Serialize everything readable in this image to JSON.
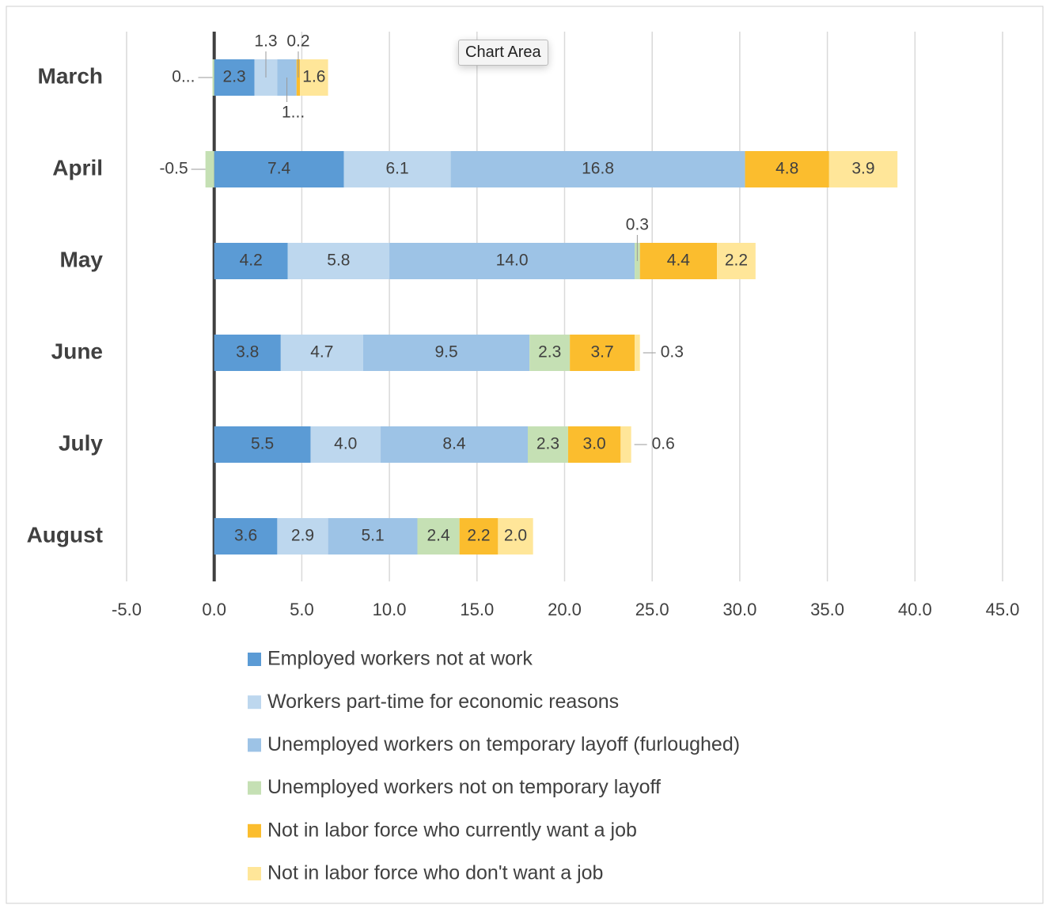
{
  "chart_data": {
    "type": "stacked-bar-horizontal",
    "tooltip": "Chart Area",
    "categories": [
      "March",
      "April",
      "May",
      "June",
      "July",
      "August"
    ],
    "series": [
      {
        "name": "Employed workers not at work",
        "color": "#5b9bd5",
        "values": [
          2.3,
          7.4,
          4.2,
          3.8,
          5.5,
          3.6
        ],
        "value_labels": [
          "2.3",
          "7.4",
          "4.2",
          "3.8",
          "5.5",
          "3.6"
        ]
      },
      {
        "name": "Workers part-time for economic reasons",
        "color": "#bdd7ee",
        "values": [
          1.3,
          6.1,
          5.8,
          4.7,
          4.0,
          2.9
        ],
        "value_labels": [
          "1.3",
          "6.1",
          "5.8",
          "4.7",
          "4.0",
          "2.9"
        ]
      },
      {
        "name": "Unemployed workers on temporary layoff (furloughed)",
        "color": "#9dc3e6",
        "values": [
          1.1,
          16.8,
          14.0,
          9.5,
          8.4,
          5.1
        ],
        "value_labels": [
          "1...",
          "16.8",
          "14.0",
          "9.5",
          "8.4",
          "5.1"
        ]
      },
      {
        "name": "Unemployed workers not on temporary layoff",
        "color": "#c5e0b4",
        "values": [
          -0.1,
          -0.5,
          0.3,
          2.3,
          2.3,
          2.4
        ],
        "value_labels": [
          "0...",
          "-0.5",
          "0.3",
          "2.3",
          "2.3",
          "2.4"
        ]
      },
      {
        "name": "Not in labor force who currently want a job",
        "color": "#fbbd2e",
        "values": [
          0.2,
          4.8,
          4.4,
          3.7,
          3.0,
          2.2
        ],
        "value_labels": [
          "0.2",
          "4.8",
          "4.4",
          "3.7",
          "3.0",
          "2.2"
        ]
      },
      {
        "name": "Not in labor force who don't want a job",
        "color": "#ffe699",
        "values": [
          1.6,
          3.9,
          2.2,
          0.3,
          0.6,
          2.0
        ],
        "value_labels": [
          "1.6",
          "3.9",
          "2.2",
          "0.3",
          "0.6",
          "2.0"
        ]
      }
    ],
    "xlim": [
      -5,
      45
    ],
    "xticks": [
      {
        "value": -5,
        "label": "-5.0"
      },
      {
        "value": 0,
        "label": "0.0"
      },
      {
        "value": 5,
        "label": "5.0"
      },
      {
        "value": 10,
        "label": "10.0"
      },
      {
        "value": 15,
        "label": "15.0"
      },
      {
        "value": 20,
        "label": "20.0"
      },
      {
        "value": 25,
        "label": "25.0"
      },
      {
        "value": 30,
        "label": "30.0"
      },
      {
        "value": 35,
        "label": "35.0"
      },
      {
        "value": 40,
        "label": "40.0"
      },
      {
        "value": 45,
        "label": "45.0"
      }
    ],
    "grid": true,
    "legend": "bottom"
  }
}
